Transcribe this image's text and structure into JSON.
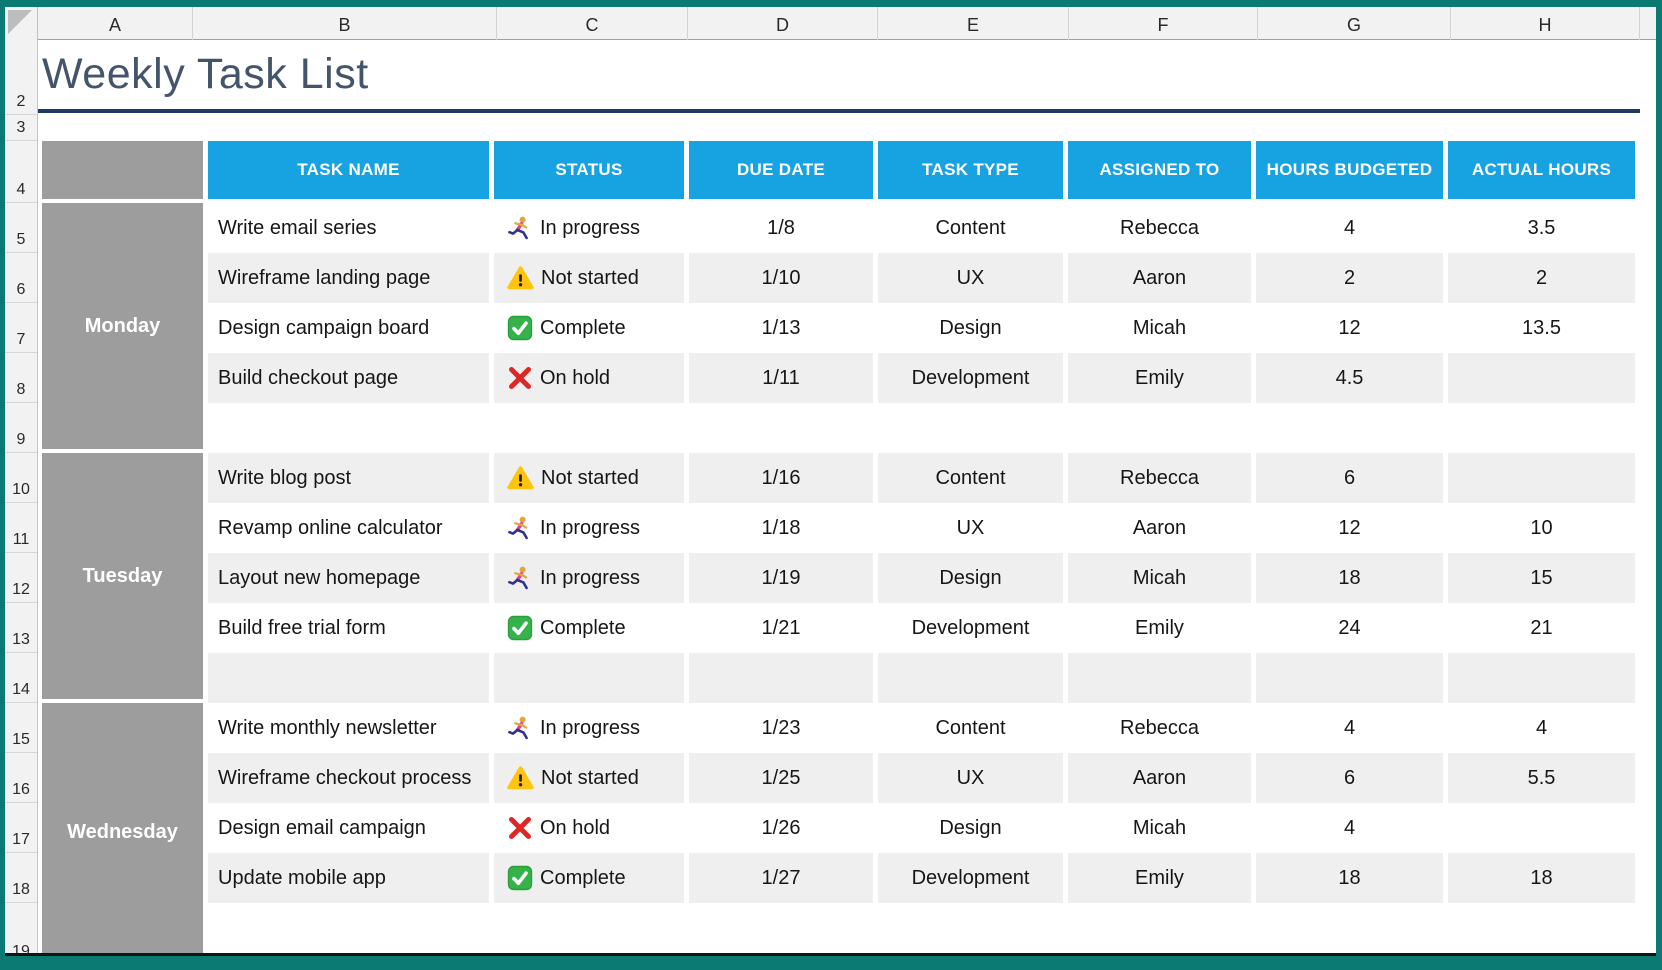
{
  "sheet": {
    "title": "Weekly Task List",
    "column_letters": [
      "A",
      "B",
      "C",
      "D",
      "E",
      "F",
      "G",
      "H"
    ],
    "row_numbers": [
      "2",
      "3",
      "4",
      "5",
      "6",
      "7",
      "8",
      "9",
      "10",
      "11",
      "12",
      "13",
      "14",
      "15",
      "16",
      "17",
      "18",
      "19"
    ]
  },
  "table": {
    "headers": [
      "TASK NAME",
      "STATUS",
      "DUE DATE",
      "TASK TYPE",
      "ASSIGNED TO",
      "HOURS BUDGETED",
      "ACTUAL HOURS"
    ],
    "colors": {
      "header_bg": "#17a2e2",
      "day_label_bg": "#9d9d9d",
      "row_stripe": "#efefef",
      "title_text": "#44546a",
      "title_rule": "#1f3864",
      "frame": "#0b7a72"
    },
    "status_legend": [
      {
        "label": "In progress",
        "icon": "runner-icon"
      },
      {
        "label": "Not started",
        "icon": "warning-icon"
      },
      {
        "label": "Complete",
        "icon": "check-icon"
      },
      {
        "label": "On hold",
        "icon": "x-icon"
      }
    ],
    "days": [
      {
        "label": "Monday",
        "rows": [
          {
            "task": "Write email series",
            "status": "In progress",
            "icon": "runner-icon",
            "due": "1/8",
            "type": "Content",
            "assigned": "Rebecca",
            "budgeted": "4",
            "actual": "3.5"
          },
          {
            "task": "Wireframe landing page",
            "status": "Not started",
            "icon": "warning-icon",
            "due": "1/10",
            "type": "UX",
            "assigned": "Aaron",
            "budgeted": "2",
            "actual": "2"
          },
          {
            "task": "Design campaign board",
            "status": "Complete",
            "icon": "check-icon",
            "due": "1/13",
            "type": "Design",
            "assigned": "Micah",
            "budgeted": "12",
            "actual": "13.5"
          },
          {
            "task": "Build checkout page",
            "status": "On hold",
            "icon": "x-icon",
            "due": "1/11",
            "type": "Development",
            "assigned": "Emily",
            "budgeted": "4.5",
            "actual": ""
          },
          {
            "task": "",
            "status": "",
            "icon": "",
            "due": "",
            "type": "",
            "assigned": "",
            "budgeted": "",
            "actual": ""
          }
        ]
      },
      {
        "label": "Tuesday",
        "rows": [
          {
            "task": "Write blog post",
            "status": "Not started",
            "icon": "warning-icon",
            "due": "1/16",
            "type": "Content",
            "assigned": "Rebecca",
            "budgeted": "6",
            "actual": ""
          },
          {
            "task": "Revamp online calculator",
            "status": "In progress",
            "icon": "runner-icon",
            "due": "1/18",
            "type": "UX",
            "assigned": "Aaron",
            "budgeted": "12",
            "actual": "10"
          },
          {
            "task": "Layout new homepage",
            "status": "In progress",
            "icon": "runner-icon",
            "due": "1/19",
            "type": "Design",
            "assigned": "Micah",
            "budgeted": "18",
            "actual": "15"
          },
          {
            "task": "Build free trial form",
            "status": "Complete",
            "icon": "check-icon",
            "due": "1/21",
            "type": "Development",
            "assigned": "Emily",
            "budgeted": "24",
            "actual": "21"
          },
          {
            "task": "",
            "status": "",
            "icon": "",
            "due": "",
            "type": "",
            "assigned": "",
            "budgeted": "",
            "actual": ""
          }
        ]
      },
      {
        "label": "Wednesday",
        "rows": [
          {
            "task": "Write monthly newsletter",
            "status": "In progress",
            "icon": "runner-icon",
            "due": "1/23",
            "type": "Content",
            "assigned": "Rebecca",
            "budgeted": "4",
            "actual": "4"
          },
          {
            "task": "Wireframe checkout process",
            "status": "Not started",
            "icon": "warning-icon",
            "due": "1/25",
            "type": "UX",
            "assigned": "Aaron",
            "budgeted": "6",
            "actual": "5.5"
          },
          {
            "task": "Design email campaign",
            "status": "On hold",
            "icon": "x-icon",
            "due": "1/26",
            "type": "Design",
            "assigned": "Micah",
            "budgeted": "4",
            "actual": ""
          },
          {
            "task": "Update mobile app",
            "status": "Complete",
            "icon": "check-icon",
            "due": "1/27",
            "type": "Development",
            "assigned": "Emily",
            "budgeted": "18",
            "actual": "18"
          }
        ]
      }
    ]
  }
}
